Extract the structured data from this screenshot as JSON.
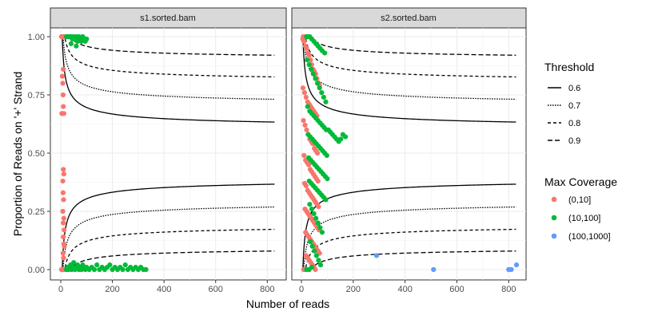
{
  "chart_data": {
    "type": "scatter",
    "panels": [
      "s1.sorted.bam",
      "s2.sorted.bam"
    ],
    "xlabel": "Number of reads",
    "ylabel": "Proportion of Reads on '+' Strand",
    "xlim": [
      0,
      830
    ],
    "ylim": [
      0,
      1
    ],
    "x_ticks": [
      0,
      200,
      400,
      600,
      800
    ],
    "y_ticks": [
      0.0,
      0.25,
      0.5,
      0.75,
      1.0
    ],
    "y_tick_labels": [
      "0.00",
      "0.25",
      "0.50",
      "0.75",
      "1.00"
    ],
    "grid": true,
    "legend_position": "right",
    "threshold_legend": {
      "title": "Threshold",
      "items": [
        {
          "label": "0.6",
          "value": 0.6,
          "dash": "solid"
        },
        {
          "label": "0.7",
          "value": 0.7,
          "dash": "dotted"
        },
        {
          "label": "0.8",
          "value": 0.8,
          "dash": "dashed"
        },
        {
          "label": "0.9",
          "value": 0.9,
          "dash": "longdash"
        }
      ]
    },
    "coverage_legend": {
      "title": "Max Coverage",
      "items": [
        {
          "label": "(0,10]",
          "color": "#F8766D"
        },
        {
          "label": "(10,100]",
          "color": "#00BA38"
        },
        {
          "label": "(100,1000]",
          "color": "#619CFF"
        }
      ]
    },
    "points": {
      "s1.sorted.bam": {
        "(0,10]": [
          [
            3,
            1.0
          ],
          [
            4,
            1.0
          ],
          [
            5,
            1.0
          ],
          [
            6,
            1.0
          ],
          [
            7,
            1.0
          ],
          [
            8,
            1.0
          ],
          [
            9,
            1.0
          ],
          [
            10,
            1.0
          ],
          [
            11,
            1.0
          ],
          [
            12,
            1.0
          ],
          [
            14,
            1.0
          ],
          [
            16,
            1.0
          ],
          [
            18,
            1.0
          ],
          [
            20,
            1.0
          ],
          [
            6,
            0.83
          ],
          [
            8,
            0.8
          ],
          [
            10,
            0.86
          ],
          [
            9,
            0.75
          ],
          [
            10,
            0.7
          ],
          [
            12,
            0.67
          ],
          [
            6,
            0.67
          ],
          [
            4,
            0.67
          ],
          [
            10,
            0.43
          ],
          [
            12,
            0.41
          ],
          [
            8,
            0.38
          ],
          [
            9,
            0.33
          ],
          [
            11,
            0.3
          ],
          [
            8,
            0.25
          ],
          [
            10,
            0.2
          ],
          [
            12,
            0.22
          ],
          [
            13,
            0.17
          ],
          [
            10,
            0.14
          ],
          [
            12,
            0.11
          ],
          [
            14,
            0.1
          ],
          [
            9,
            0.07
          ],
          [
            11,
            0.05
          ],
          [
            3,
            0.0
          ],
          [
            4,
            0.0
          ],
          [
            5,
            0.0
          ],
          [
            6,
            0.0
          ],
          [
            7,
            0.0
          ],
          [
            8,
            0.0
          ],
          [
            9,
            0.0
          ],
          [
            10,
            0.0
          ],
          [
            11,
            0.0
          ],
          [
            12,
            0.0
          ],
          [
            13,
            0.0
          ],
          [
            15,
            0.0
          ],
          [
            17,
            0.0
          ],
          [
            19,
            0.0
          ]
        ],
        "(10,100]": [
          [
            22,
            1.0
          ],
          [
            26,
            1.0
          ],
          [
            30,
            1.0
          ],
          [
            35,
            1.0
          ],
          [
            40,
            1.0
          ],
          [
            45,
            0.99
          ],
          [
            50,
            1.0
          ],
          [
            55,
            0.99
          ],
          [
            60,
            1.0
          ],
          [
            65,
            0.98
          ],
          [
            70,
            1.0
          ],
          [
            75,
            0.99
          ],
          [
            80,
            0.98
          ],
          [
            85,
            1.0
          ],
          [
            90,
            0.99
          ],
          [
            95,
            0.98
          ],
          [
            100,
            0.99
          ],
          [
            40,
            0.97
          ],
          [
            60,
            0.96
          ],
          [
            22,
            0.0
          ],
          [
            26,
            0.01
          ],
          [
            30,
            0.0
          ],
          [
            34,
            0.01
          ],
          [
            38,
            0.02
          ],
          [
            42,
            0.0
          ],
          [
            46,
            0.01
          ],
          [
            50,
            0.03
          ],
          [
            55,
            0.0
          ],
          [
            60,
            0.01
          ],
          [
            65,
            0.02
          ],
          [
            70,
            0.0
          ],
          [
            75,
            0.01
          ],
          [
            80,
            0.0
          ],
          [
            85,
            0.02
          ],
          [
            90,
            0.01
          ],
          [
            95,
            0.0
          ],
          [
            100,
            0.01
          ],
          [
            110,
            0.0
          ],
          [
            120,
            0.01
          ],
          [
            130,
            0.0
          ],
          [
            140,
            0.02
          ],
          [
            150,
            0.0
          ],
          [
            160,
            0.01
          ],
          [
            170,
            0.0
          ],
          [
            180,
            0.01
          ],
          [
            190,
            0.02
          ],
          [
            200,
            0.0
          ],
          [
            210,
            0.01
          ],
          [
            220,
            0.0
          ],
          [
            230,
            0.01
          ],
          [
            240,
            0.0
          ],
          [
            250,
            0.02
          ],
          [
            260,
            0.0
          ],
          [
            270,
            0.01
          ],
          [
            280,
            0.0
          ],
          [
            290,
            0.01
          ],
          [
            300,
            0.0
          ],
          [
            310,
            0.01
          ],
          [
            320,
            0.0
          ],
          [
            330,
            0.0
          ]
        ],
        "(100,1000]": []
      },
      "s2.sorted.bam": {
        "(0,10]": [
          [
            5,
            0.99
          ],
          [
            10,
            0.98
          ],
          [
            15,
            0.96
          ],
          [
            20,
            0.95
          ],
          [
            25,
            0.93
          ],
          [
            30,
            0.92
          ],
          [
            35,
            0.9
          ],
          [
            40,
            0.88
          ],
          [
            45,
            0.86
          ],
          [
            50,
            0.85
          ],
          [
            55,
            0.84
          ],
          [
            60,
            0.82
          ],
          [
            65,
            0.8
          ],
          [
            70,
            0.79
          ],
          [
            6,
            0.78
          ],
          [
            12,
            0.76
          ],
          [
            18,
            0.74
          ],
          [
            24,
            0.72
          ],
          [
            30,
            0.71
          ],
          [
            36,
            0.7
          ],
          [
            42,
            0.69
          ],
          [
            48,
            0.68
          ],
          [
            54,
            0.67
          ],
          [
            60,
            0.66
          ],
          [
            8,
            0.64
          ],
          [
            14,
            0.62
          ],
          [
            20,
            0.6
          ],
          [
            26,
            0.58
          ],
          [
            32,
            0.56
          ],
          [
            38,
            0.55
          ],
          [
            44,
            0.54
          ],
          [
            50,
            0.52
          ],
          [
            56,
            0.51
          ],
          [
            62,
            0.5
          ],
          [
            10,
            0.49
          ],
          [
            16,
            0.47
          ],
          [
            22,
            0.46
          ],
          [
            28,
            0.45
          ],
          [
            34,
            0.43
          ],
          [
            40,
            0.42
          ],
          [
            46,
            0.41
          ],
          [
            52,
            0.4
          ],
          [
            58,
            0.39
          ],
          [
            64,
            0.38
          ],
          [
            12,
            0.37
          ],
          [
            18,
            0.36
          ],
          [
            24,
            0.34
          ],
          [
            30,
            0.33
          ],
          [
            36,
            0.32
          ],
          [
            42,
            0.31
          ],
          [
            48,
            0.3
          ],
          [
            54,
            0.29
          ],
          [
            60,
            0.28
          ],
          [
            66,
            0.27
          ],
          [
            14,
            0.26
          ],
          [
            20,
            0.25
          ],
          [
            26,
            0.24
          ],
          [
            32,
            0.23
          ],
          [
            38,
            0.22
          ],
          [
            44,
            0.21
          ],
          [
            50,
            0.2
          ],
          [
            56,
            0.19
          ],
          [
            62,
            0.18
          ],
          [
            68,
            0.17
          ],
          [
            16,
            0.16
          ],
          [
            22,
            0.15
          ],
          [
            28,
            0.14
          ],
          [
            34,
            0.13
          ],
          [
            40,
            0.12
          ],
          [
            46,
            0.11
          ],
          [
            52,
            0.1
          ],
          [
            58,
            0.09
          ],
          [
            64,
            0.08
          ],
          [
            70,
            0.07
          ],
          [
            18,
            0.06
          ],
          [
            24,
            0.05
          ],
          [
            30,
            0.04
          ],
          [
            36,
            0.03
          ],
          [
            42,
            0.02
          ],
          [
            48,
            0.01
          ],
          [
            54,
            0.0
          ],
          [
            9,
            0.0
          ],
          [
            13,
            0.0
          ],
          [
            7,
            1.0
          ],
          [
            11,
            1.0
          ],
          [
            17,
            1.0
          ]
        ],
        "(10,100]": [
          [
            20,
            1.0
          ],
          [
            26,
            1.0
          ],
          [
            32,
            1.0
          ],
          [
            40,
            0.99
          ],
          [
            48,
            0.98
          ],
          [
            56,
            0.97
          ],
          [
            64,
            0.96
          ],
          [
            72,
            0.95
          ],
          [
            80,
            0.94
          ],
          [
            90,
            0.93
          ],
          [
            22,
            0.9
          ],
          [
            30,
            0.88
          ],
          [
            38,
            0.86
          ],
          [
            46,
            0.84
          ],
          [
            54,
            0.82
          ],
          [
            62,
            0.8
          ],
          [
            70,
            0.78
          ],
          [
            78,
            0.76
          ],
          [
            86,
            0.74
          ],
          [
            94,
            0.72
          ],
          [
            24,
            0.7
          ],
          [
            32,
            0.68
          ],
          [
            40,
            0.67
          ],
          [
            48,
            0.66
          ],
          [
            56,
            0.65
          ],
          [
            64,
            0.64
          ],
          [
            72,
            0.63
          ],
          [
            80,
            0.62
          ],
          [
            88,
            0.61
          ],
          [
            96,
            0.6
          ],
          [
            104,
            0.6
          ],
          [
            112,
            0.59
          ],
          [
            120,
            0.58
          ],
          [
            128,
            0.57
          ],
          [
            136,
            0.56
          ],
          [
            144,
            0.55
          ],
          [
            152,
            0.56
          ],
          [
            160,
            0.58
          ],
          [
            170,
            0.57
          ],
          [
            26,
            0.58
          ],
          [
            34,
            0.57
          ],
          [
            42,
            0.56
          ],
          [
            50,
            0.55
          ],
          [
            58,
            0.54
          ],
          [
            66,
            0.53
          ],
          [
            74,
            0.52
          ],
          [
            82,
            0.51
          ],
          [
            90,
            0.5
          ],
          [
            98,
            0.49
          ],
          [
            28,
            0.48
          ],
          [
            36,
            0.47
          ],
          [
            44,
            0.46
          ],
          [
            52,
            0.45
          ],
          [
            60,
            0.44
          ],
          [
            68,
            0.43
          ],
          [
            76,
            0.42
          ],
          [
            84,
            0.41
          ],
          [
            92,
            0.4
          ],
          [
            100,
            0.39
          ],
          [
            30,
            0.38
          ],
          [
            38,
            0.37
          ],
          [
            46,
            0.36
          ],
          [
            54,
            0.35
          ],
          [
            62,
            0.34
          ],
          [
            70,
            0.33
          ],
          [
            78,
            0.32
          ],
          [
            86,
            0.31
          ],
          [
            94,
            0.3
          ],
          [
            32,
            0.28
          ],
          [
            40,
            0.26
          ],
          [
            48,
            0.24
          ],
          [
            56,
            0.22
          ],
          [
            64,
            0.2
          ],
          [
            72,
            0.18
          ],
          [
            80,
            0.16
          ],
          [
            34,
            0.12
          ],
          [
            42,
            0.1
          ],
          [
            50,
            0.08
          ],
          [
            58,
            0.06
          ],
          [
            66,
            0.04
          ],
          [
            74,
            0.02
          ],
          [
            20,
            0.0
          ],
          [
            30,
            0.0
          ],
          [
            40,
            0.01
          ]
        ],
        "(100,1000]": [
          [
            290,
            0.06
          ],
          [
            510,
            0.0
          ],
          [
            800,
            0.0
          ],
          [
            810,
            0.0
          ],
          [
            830,
            0.02
          ]
        ]
      }
    }
  }
}
